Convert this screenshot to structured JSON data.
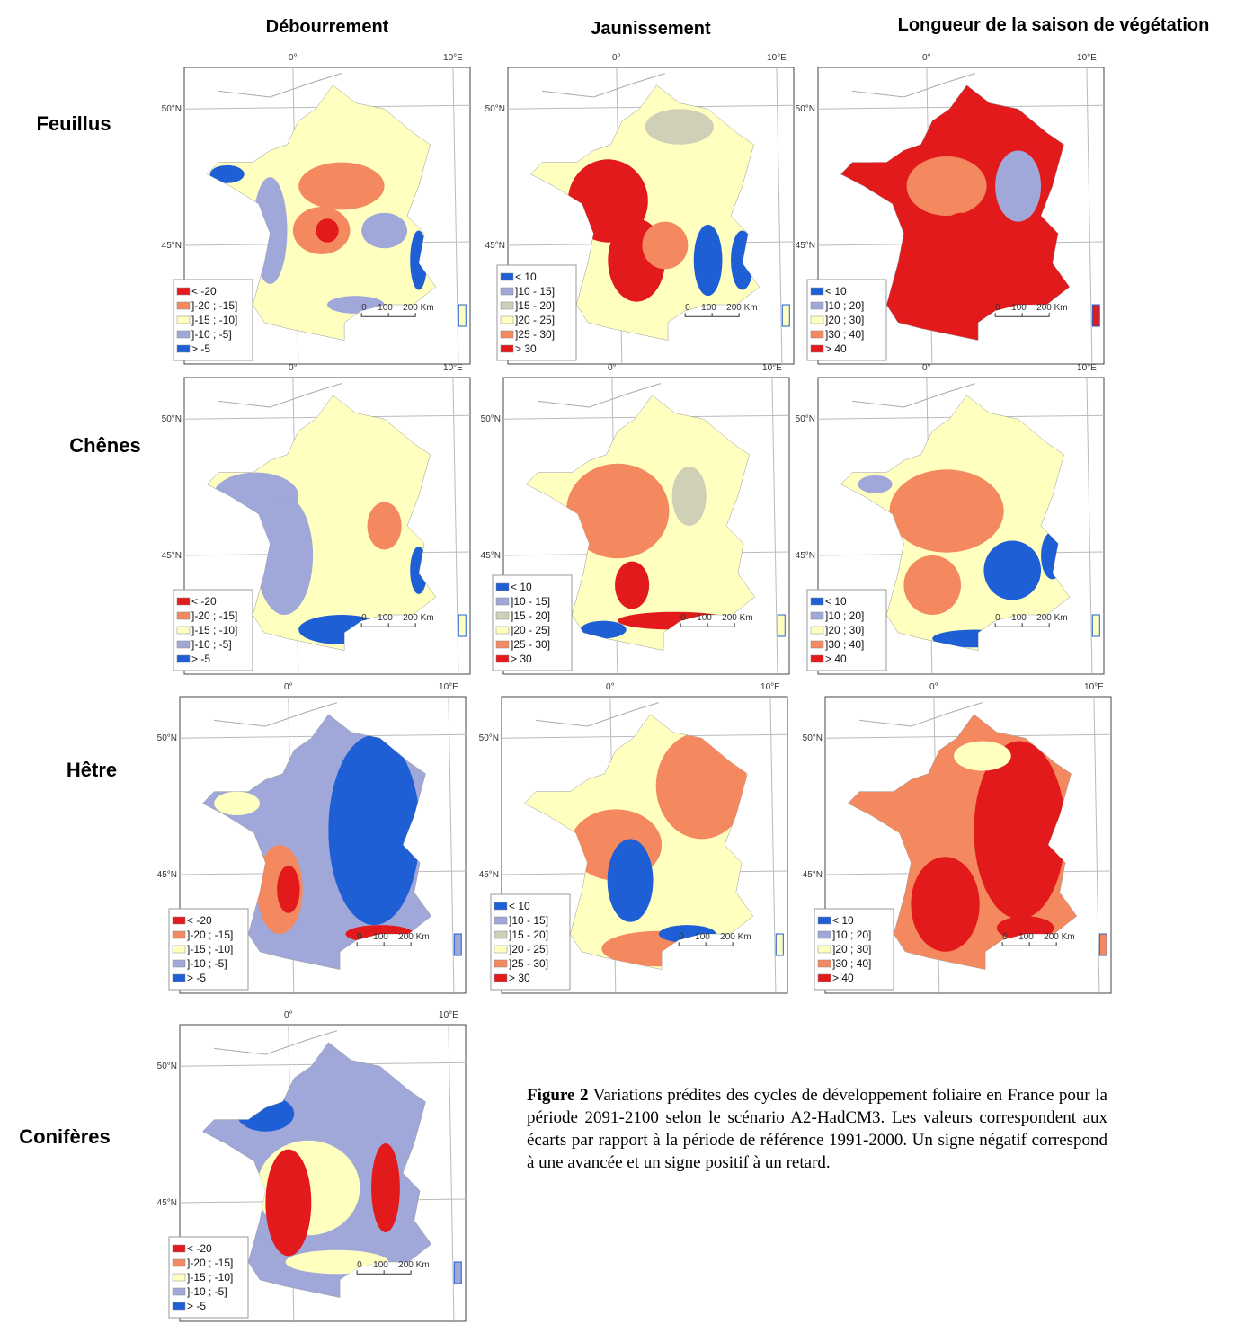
{
  "column_headers": [
    "Débourrement",
    "Jaunissement",
    "Longueur de la saison de végétation"
  ],
  "row_labels": [
    "Feuillus",
    "Chênes",
    "Hêtre",
    "Conifères"
  ],
  "legends": [
    [
      {
        "label": "< -20",
        "color": "#e31a1c"
      },
      {
        "label": "]-20 ; -15]",
        "color": "#f4895f"
      },
      {
        "label": "]-15 ; -10]",
        "color": "#ffffc0"
      },
      {
        "label": "]-10 ; -5]",
        "color": "#9fa8d8"
      },
      {
        "label": "> -5",
        "color": "#1f5fd6"
      }
    ],
    [
      {
        "label": "< 10",
        "color": "#1f5fd6"
      },
      {
        "label": "]10 - 15]",
        "color": "#9fa8d8"
      },
      {
        "label": "]15 - 20]",
        "color": "#d0d0b8"
      },
      {
        "label": "]20 - 25]",
        "color": "#ffffc0"
      },
      {
        "label": "]25 - 30]",
        "color": "#f4895f"
      },
      {
        "label": "> 30",
        "color": "#e31a1c"
      }
    ],
    [
      {
        "label": "< 10",
        "color": "#1f5fd6"
      },
      {
        "label": "]10 ; 20]",
        "color": "#9fa8d8"
      },
      {
        "label": "]20 ; 30]",
        "color": "#ffffc0"
      },
      {
        "label": "]30 ; 40]",
        "color": "#f4895f"
      },
      {
        "label": "> 40",
        "color": "#e31a1c"
      }
    ]
  ],
  "map_labels": {
    "lon": [
      "0°",
      "10°E"
    ],
    "lat": [
      "50°N",
      "45°N"
    ],
    "scale": [
      "0",
      "100",
      "200 Km"
    ]
  },
  "caption": {
    "label": "Figure 2",
    "text": "Variations prédites des cycles de développement foliaire en France pour la période 2091-2100 selon le scénario A2-HadCM3. Les valeurs correspondent aux écarts par rapport à la période de référence 1991-2000. Un signe négatif correspond à une avancée et un signe positif à un retard."
  }
}
